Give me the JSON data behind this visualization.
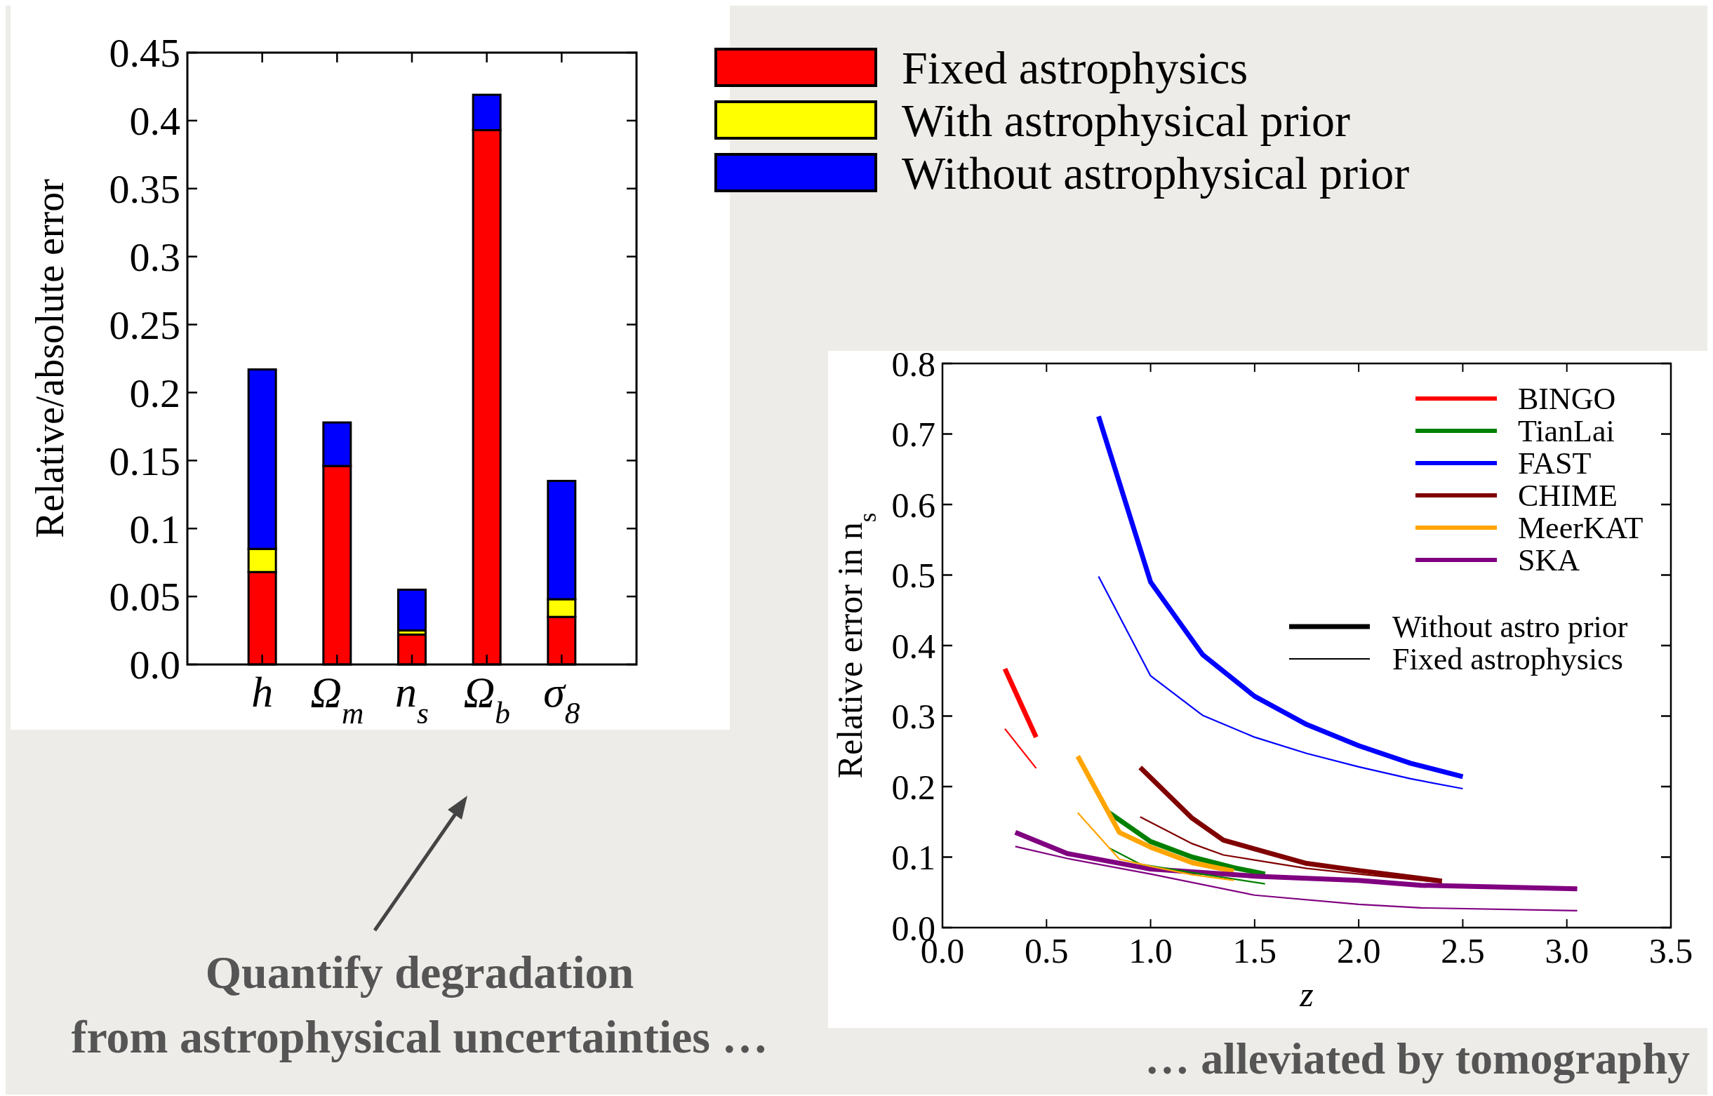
{
  "chart_data": [
    {
      "type": "bar",
      "stacked": true,
      "ylabel": "Relative/absolute error",
      "categories": [
        "h",
        "Ω$_{m}$",
        "n$_{s}$",
        "Ω$_{b}$",
        "σ$_{8}$"
      ],
      "series": [
        {
          "name": "Fixed astrophysics",
          "color": "#ff0000",
          "values": [
            0.068,
            0.146,
            0.022,
            0.393,
            0.035
          ]
        },
        {
          "name": "With astrophysical prior",
          "color": "#ffff00",
          "values": [
            0.017,
            0,
            0.003,
            0,
            0.013
          ]
        },
        {
          "name": "Without astrophysical prior",
          "color": "#0000ff",
          "values": [
            0.132,
            0.032,
            0.03,
            0.026,
            0.087
          ]
        }
      ],
      "ylim": [
        0,
        0.45
      ],
      "yticks": [
        {
          "value": 0,
          "label": "0.0"
        },
        0.05,
        0.1,
        0.15,
        0.2,
        0.25,
        0.3,
        0.35,
        0.4,
        0.45
      ],
      "legend": "top right",
      "annotations": [
        "Quantify degradation",
        "from astrophysical uncertainties …"
      ]
    },
    {
      "type": "line",
      "xlabel": "z",
      "ylabel": "Relative error in n$_{s}$",
      "xlim": [
        0,
        3.5
      ],
      "ylim": [
        0,
        0.8
      ],
      "xticks": [
        {
          "value": 0,
          "label": "0.0"
        },
        0.5,
        {
          "value": 1,
          "label": "1.0"
        },
        1.5,
        {
          "value": 2,
          "label": "2.0"
        },
        2.5,
        {
          "value": 3,
          "label": "3.0"
        },
        3.5
      ],
      "yticks": [
        {
          "value": 0,
          "label": "0.0"
        },
        0.1,
        0.2,
        0.3,
        0.4,
        0.5,
        0.6,
        0.7,
        0.8
      ],
      "legend": "top right",
      "series": [
        {
          "name": "BINGO",
          "color": "#ff0000",
          "x": [
            0.3,
            0.45
          ],
          "values": [
            0.367,
            0.27
          ]
        },
        {
          "name": "TianLai",
          "color": "#008000",
          "x": [
            0.8,
            1.0,
            1.2,
            1.4,
            1.55
          ],
          "values": [
            0.163,
            0.122,
            0.1,
            0.085,
            0.076
          ]
        },
        {
          "name": "FAST",
          "color": "#0000ff",
          "x": [
            0.75,
            1.0,
            1.25,
            1.5,
            1.75,
            2.0,
            2.25,
            2.5
          ],
          "values": [
            0.725,
            0.49,
            0.387,
            0.328,
            0.288,
            0.258,
            0.233,
            0.214
          ]
        },
        {
          "name": "CHIME",
          "color": "#800000",
          "x": [
            0.95,
            1.2,
            1.35,
            1.75,
            2.0,
            2.4
          ],
          "values": [
            0.227,
            0.155,
            0.124,
            0.091,
            0.081,
            0.066
          ]
        },
        {
          "name": "MeerKAT",
          "color": "#ffa500",
          "x": [
            0.65,
            0.85,
            1.0,
            1.2,
            1.4
          ],
          "values": [
            0.243,
            0.135,
            0.114,
            0.092,
            0.08
          ]
        },
        {
          "name": "SKA",
          "color": "#800080",
          "x": [
            0.35,
            0.6,
            1.0,
            1.5,
            2.0,
            2.3,
            3.05
          ],
          "values": [
            0.135,
            0.105,
            0.083,
            0.073,
            0.067,
            0.06,
            0.055
          ]
        },
        {
          "color": "#ff0000",
          "x": [
            0.3,
            0.45
          ],
          "values": [
            0.282,
            0.226
          ]
        },
        {
          "color": "#008000",
          "x": [
            0.8,
            0.95,
            1.2,
            1.55
          ],
          "values": [
            0.113,
            0.09,
            0.078,
            0.062
          ]
        },
        {
          "color": "#0000ff",
          "x": [
            0.75,
            1.0,
            1.25,
            1.5,
            1.75,
            2.0,
            2.25,
            2.5
          ],
          "values": [
            0.498,
            0.357,
            0.301,
            0.27,
            0.247,
            0.228,
            0.211,
            0.197
          ]
        },
        {
          "color": "#800000",
          "x": [
            0.95,
            1.2,
            1.35,
            1.75,
            2.0,
            2.4
          ],
          "values": [
            0.157,
            0.119,
            0.103,
            0.084,
            0.076,
            0.064
          ]
        },
        {
          "color": "#ffa500",
          "x": [
            0.65,
            0.85,
            1.0,
            1.2,
            1.4
          ],
          "values": [
            0.163,
            0.097,
            0.087,
            0.075,
            0.067
          ]
        },
        {
          "color": "#800080",
          "x": [
            0.35,
            0.6,
            1.0,
            1.5,
            2.0,
            2.3,
            3.05
          ],
          "values": [
            0.115,
            0.098,
            0.076,
            0.046,
            0.033,
            0.028,
            0.024
          ]
        }
      ],
      "annotations": [
        "Without astro prior",
        "Fixed astrophysics",
        "… alleviated by tomography"
      ]
    }
  ]
}
